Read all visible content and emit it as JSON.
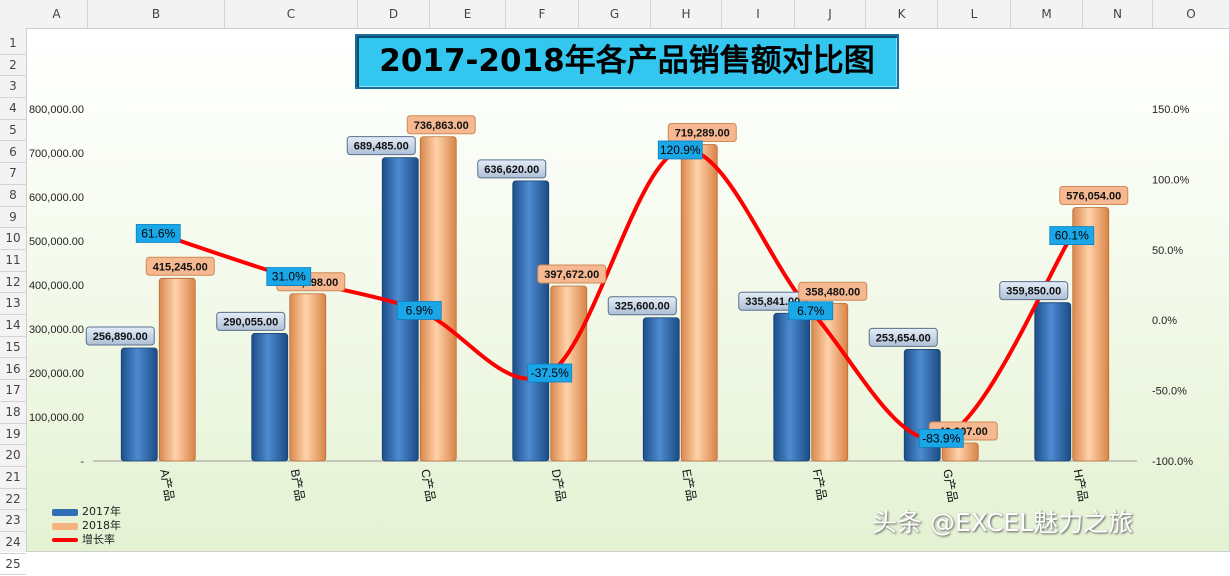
{
  "spreadsheet": {
    "columns": [
      "A",
      "B",
      "C",
      "D",
      "E",
      "F",
      "G",
      "H",
      "I",
      "J",
      "K",
      "L",
      "M",
      "N",
      "O"
    ],
    "rows": [
      "1",
      "2",
      "3",
      "4",
      "5",
      "6",
      "7",
      "8",
      "9",
      "10",
      "11",
      "12",
      "13",
      "14",
      "15",
      "16",
      "17",
      "18",
      "19",
      "20",
      "21",
      "22",
      "23",
      "24",
      "25"
    ]
  },
  "chart_data": {
    "type": "bar",
    "title": "2017-2018年各产品销售额对比图",
    "categories": [
      "A产品",
      "B产品",
      "C产品",
      "D产品",
      "E产品",
      "F产品",
      "G产品",
      "H产品"
    ],
    "series": [
      {
        "name": "2017年",
        "type": "bar",
        "axis": "left",
        "color": "#2f6fb5",
        "values": [
          256890,
          290055,
          689485,
          636620,
          325600,
          335841,
          253654,
          359850
        ],
        "labels": [
          "256,890.00",
          "290,055.00",
          "689,485.00",
          "636,620.00",
          "325,600.00",
          "335,841.00",
          "253,654.00",
          "359,850.00"
        ]
      },
      {
        "name": "2018年",
        "type": "bar",
        "axis": "left",
        "color": "#f7b37f",
        "values": [
          415245,
          380098,
          736863,
          397672,
          719289,
          358480,
          40907,
          576054
        ],
        "labels": [
          "415,245.00",
          "380,098.00",
          "736,863.00",
          "397,672.00",
          "719,289.00",
          "358,480.00",
          "40,907.00",
          "576,054.00"
        ]
      },
      {
        "name": "增长率",
        "type": "line",
        "axis": "right",
        "color": "#ff0000",
        "values": [
          61.6,
          31.0,
          6.9,
          -37.5,
          120.9,
          6.7,
          -83.9,
          60.1
        ],
        "labels": [
          "61.6%",
          "31.0%",
          "6.9%",
          "-37.5%",
          "120.9%",
          "6.7%",
          "-83.9%",
          "60.1%"
        ]
      }
    ],
    "left_axis": {
      "min": 0,
      "max": 800000,
      "step": 100000,
      "tick_labels": [
        "-",
        "100,000.00",
        "200,000.00",
        "300,000.00",
        "400,000.00",
        "500,000.00",
        "600,000.00",
        "700,000.00",
        "800,000.00"
      ]
    },
    "right_axis": {
      "min": -100,
      "max": 150,
      "step": 50,
      "tick_labels": [
        "-100.0%",
        "-50.0%",
        "0.0%",
        "50.0%",
        "100.0%",
        "150.0%"
      ]
    },
    "legend_position": "bottom-left",
    "grid": false
  },
  "watermark": "头条 @EXCEL魅力之旅"
}
